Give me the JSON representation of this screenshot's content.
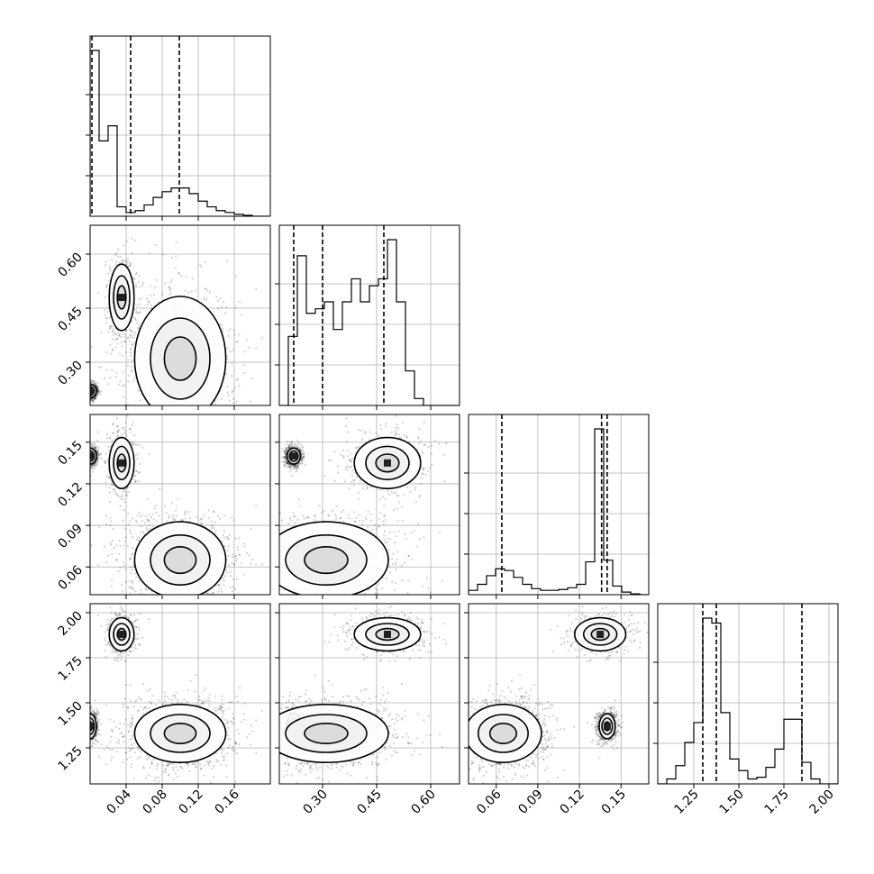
{
  "chart_data": {
    "type": "corner",
    "parameters": [
      {
        "range": [
          0.0,
          0.2
        ],
        "ticks": [
          0.04,
          0.08,
          0.12,
          0.16
        ],
        "tick_labels": [
          "0.04",
          "0.08",
          "0.12",
          "0.16"
        ],
        "quantiles": [
          0.002,
          0.045,
          0.099
        ],
        "hist_edges": [
          0.0,
          0.01,
          0.02,
          0.03,
          0.04,
          0.05,
          0.06,
          0.07,
          0.08,
          0.09,
          0.1,
          0.11,
          0.12,
          0.13,
          0.14,
          0.15,
          0.16,
          0.17,
          0.18,
          0.19,
          0.2
        ],
        "hist_counts": [
          0.88,
          0.4,
          0.48,
          0.05,
          0.02,
          0.03,
          0.06,
          0.1,
          0.13,
          0.15,
          0.15,
          0.12,
          0.08,
          0.05,
          0.03,
          0.02,
          0.01,
          0.005,
          0.0,
          0.0
        ]
      },
      {
        "range": [
          0.18,
          0.68
        ],
        "ticks": [
          0.3,
          0.45,
          0.6
        ],
        "tick_labels": [
          "0.30",
          "0.45",
          "0.60"
        ],
        "quantiles": [
          0.22,
          0.3,
          0.47
        ],
        "hist_edges": [
          0.18,
          0.205,
          0.23,
          0.255,
          0.28,
          0.305,
          0.33,
          0.355,
          0.38,
          0.405,
          0.43,
          0.455,
          0.48,
          0.505,
          0.53,
          0.555,
          0.58,
          0.605,
          0.63,
          0.655,
          0.68
        ],
        "hist_counts": [
          0.0,
          0.3,
          0.65,
          0.4,
          0.42,
          0.45,
          0.33,
          0.45,
          0.55,
          0.45,
          0.52,
          0.55,
          0.72,
          0.45,
          0.15,
          0.03,
          0.0,
          0.0,
          0.0,
          0.0
        ]
      },
      {
        "range": [
          0.04,
          0.17
        ],
        "ticks": [
          0.06,
          0.09,
          0.12,
          0.15
        ],
        "tick_labels": [
          "0.06",
          "0.09",
          "0.12",
          "0.15"
        ],
        "quantiles": [
          0.064,
          0.136,
          0.14
        ],
        "hist_edges": [
          0.04,
          0.0465,
          0.053,
          0.0595,
          0.066,
          0.0725,
          0.079,
          0.0855,
          0.092,
          0.0985,
          0.105,
          0.1115,
          0.118,
          0.1245,
          0.131,
          0.1375,
          0.144,
          0.1505,
          0.157,
          0.1635,
          0.17
        ],
        "hist_counts": [
          0.025,
          0.06,
          0.11,
          0.15,
          0.14,
          0.1,
          0.06,
          0.035,
          0.025,
          0.025,
          0.03,
          0.04,
          0.06,
          0.19,
          0.96,
          0.2,
          0.05,
          0.015,
          0.005,
          0.0
        ],
        "hist_scale_note": ""
      },
      {
        "range": [
          1.05,
          2.05
        ],
        "ticks": [
          1.25,
          1.5,
          1.75,
          2.0
        ],
        "tick_labels": [
          "1.25",
          "1.50",
          "1.75",
          "2.00"
        ],
        "quantiles": [
          1.3,
          1.375,
          1.85
        ],
        "hist_edges": [
          1.05,
          1.1,
          1.15,
          1.2,
          1.25,
          1.3,
          1.35,
          1.4,
          1.45,
          1.5,
          1.55,
          1.6,
          1.65,
          1.7,
          1.75,
          1.8,
          1.85,
          1.9,
          1.95,
          2.0,
          2.05
        ],
        "hist_counts": [
          0.0,
          0.03,
          0.11,
          0.25,
          0.37,
          1.0,
          0.97,
          0.43,
          0.15,
          0.08,
          0.03,
          0.04,
          0.1,
          0.21,
          0.39,
          0.39,
          0.13,
          0.03,
          0.0,
          0.0
        ]
      }
    ],
    "modes": [
      {
        "values": [
          0.0,
          0.22,
          0.14,
          1.37
        ],
        "spread": [
          0.003,
          0.008,
          0.0025,
          0.03
        ],
        "weight": 0.8
      },
      {
        "values": [
          0.035,
          0.48,
          0.135,
          1.88
        ],
        "spread": [
          0.006,
          0.04,
          0.008,
          0.04
        ],
        "weight": 0.45
      },
      {
        "values": [
          0.1,
          0.31,
          0.065,
          1.33
        ],
        "spread": [
          0.022,
          0.075,
          0.012,
          0.07
        ],
        "weight": 1.0
      }
    ],
    "grid": true
  }
}
